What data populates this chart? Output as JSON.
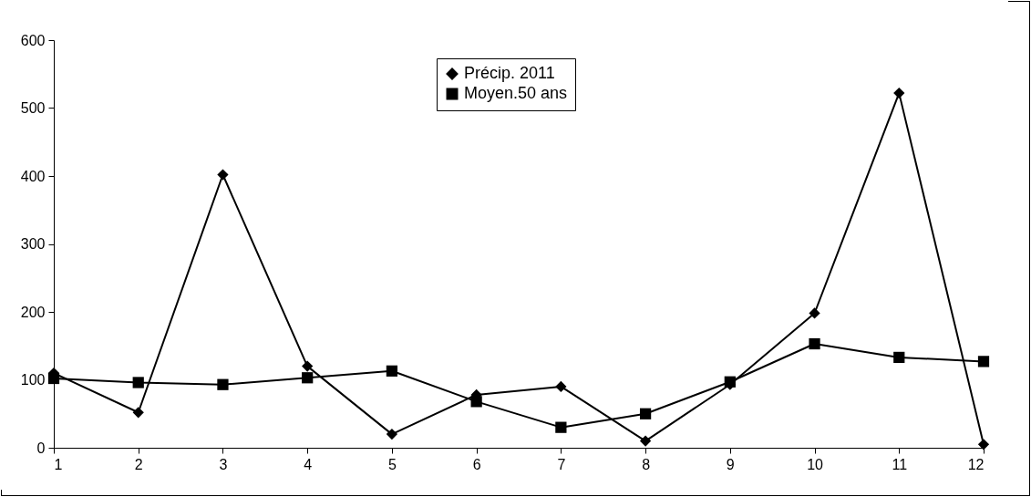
{
  "chart_data": {
    "type": "line",
    "x": [
      1,
      2,
      3,
      4,
      5,
      6,
      7,
      8,
      9,
      10,
      11,
      12
    ],
    "xlim": [
      1,
      12
    ],
    "xticks": [
      1,
      2,
      3,
      4,
      5,
      6,
      7,
      8,
      9,
      10,
      11,
      12
    ],
    "ylim": [
      0,
      600
    ],
    "yticks": [
      0,
      100,
      200,
      300,
      400,
      500,
      600
    ],
    "grid": false,
    "legend": "top",
    "line_style": "solid",
    "series": [
      {
        "name": "Précip. 2011",
        "color": "#000000",
        "marker": "diamond",
        "values": [
          110,
          52,
          402,
          120,
          20,
          78,
          90,
          10,
          93,
          198,
          522,
          5
        ]
      },
      {
        "name": "Moyen.50 ans",
        "color": "#000000",
        "marker": "square",
        "values": [
          102,
          96,
          93,
          103,
          113,
          68,
          30,
          50,
          97,
          153,
          133,
          127
        ]
      }
    ]
  }
}
